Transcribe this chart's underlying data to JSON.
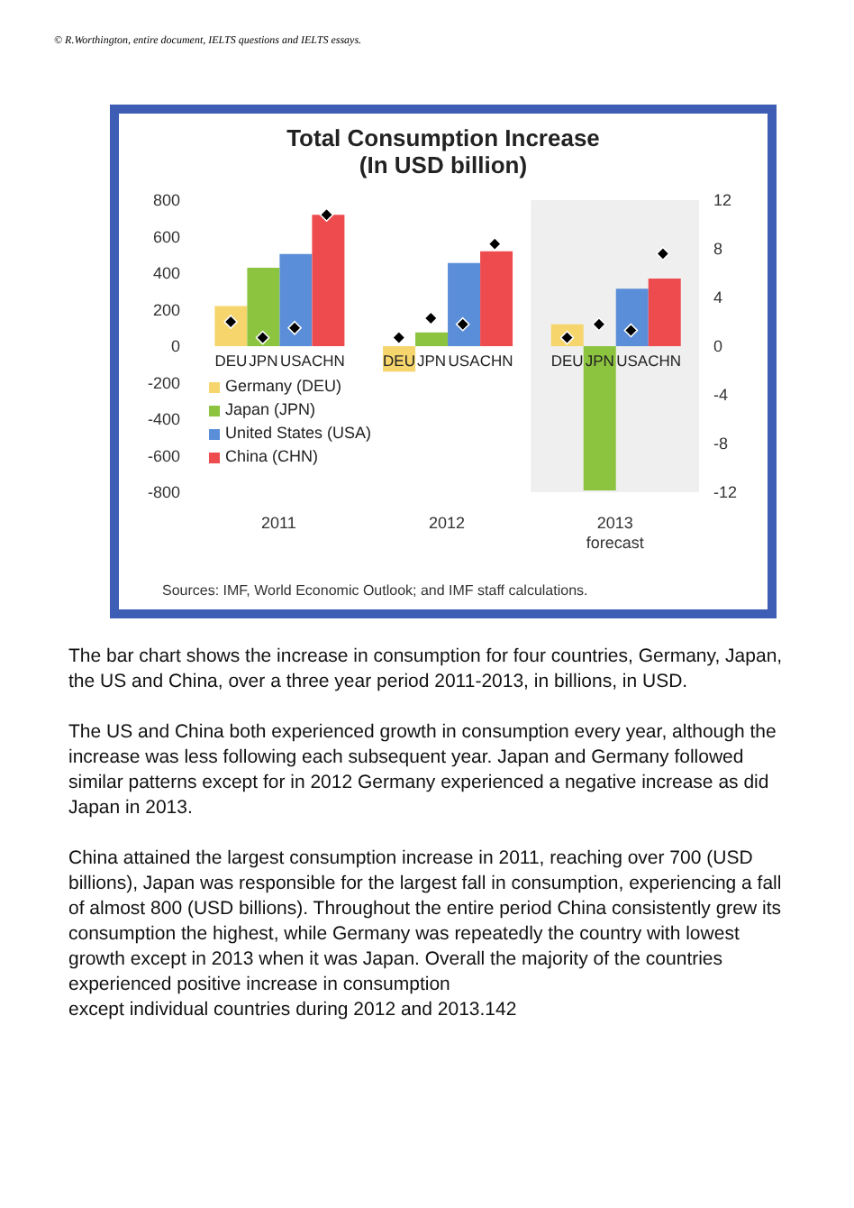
{
  "chart_data": {
    "type": "bar",
    "title": "Total Consumption Increase",
    "subtitle": "(In USD billion)",
    "categories": [
      "2011",
      "2012",
      "2013\nforecast"
    ],
    "series": [
      {
        "name": "Germany (DEU)",
        "color": "#f5d56c",
        "values": [
          220,
          -140,
          120
        ]
      },
      {
        "name": "Japan (JPN)",
        "color": "#8cc43f",
        "values": [
          430,
          75,
          -790
        ]
      },
      {
        "name": "United States (USA)",
        "color": "#5b8ed8",
        "values": [
          505,
          455,
          315
        ]
      },
      {
        "name": "China (CHN)",
        "color": "#ee4b4e",
        "values": [
          720,
          520,
          370
        ]
      },
      {
        "type": "scatter",
        "axis": "y2",
        "color": "#000000",
        "marker": "diamond",
        "values": [
          2,
          0.7,
          0.7
        ]
      },
      {
        "type": "scatter",
        "axis": "y2",
        "color": "#000000",
        "marker": "diamond",
        "values": [
          0.7,
          2.3,
          1.8
        ]
      },
      {
        "type": "scatter",
        "axis": "y2",
        "color": "#000000",
        "marker": "diamond",
        "values": [
          1.5,
          1.8,
          1.3
        ]
      },
      {
        "type": "scatter",
        "axis": "y2",
        "color": "#000000",
        "marker": "diamond",
        "values": [
          10.8,
          8.4,
          7.6
        ]
      }
    ],
    "ylim": [
      -800,
      800
    ],
    "yticks": [
      800,
      600,
      400,
      200,
      0,
      -200,
      -400,
      -600,
      -800
    ],
    "y2lim": [
      -12,
      12
    ],
    "y2ticks": [
      12,
      8,
      4,
      0,
      -4,
      -8,
      -12
    ],
    "bands": [
      {
        "axis": "x",
        "from": "2013\nforecast",
        "to": "2013\nforecast",
        "color": "#efefef"
      }
    ],
    "legend": "bottom left",
    "annotations": [
      "© R.Worthington, entire document, IELTS questions and IELTS essays.",
      "Sources: IMF, World Economic Outlook; and IMF staff calculations.",
      " The bar chart shows the increase in consumption for four countries, Germany, Japan, the US and China, over a three year period 2011-2013, in billions, in USD.",
      "The US and China both experienced  growth in consumption every year, although the increase was less following each subsequent year. Japan and Germany followed similar patterns except for in 2012 Germany experienced  a negative increase as did Japan in 2013.",
      "China attained the largest consumption increase in 2011, reaching over 700 (USD billions), Japan was responsible for the largest fall in consumption, experiencing  a fall of almost 800 (USD billions). Throughout the entire period China consistently grew its consumption the highest, while Germany was repeatedly the country with lowest growth except in 2013 when it was Japan. Overall the majority of the countries experienced   positive increase in consumption\nexcept individual countries during 2012 and 2013.142",
      {
        "text": "DEU",
        "x": "2011",
        "y": 0
      },
      {
        "text": "JPN",
        "x": "2011",
        "y": 0
      },
      {
        "text": "USA",
        "x": "2011",
        "y": 0
      },
      {
        "text": "CHN",
        "x": "2011",
        "y": 0
      },
      {
        "text": "DEU",
        "x": "2012",
        "y": 0
      },
      {
        "text": "JPN",
        "x": "2012",
        "y": 0
      },
      {
        "text": "USA",
        "x": "2012",
        "y": 0
      },
      {
        "text": "CHN",
        "x": "2012",
        "y": 0
      },
      {
        "text": "DEU",
        "x": "2013\nforecast",
        "y": 0
      },
      {
        "text": "JPN",
        "x": "2013\nforecast",
        "y": 0
      },
      {
        "text": "USA",
        "x": "2013\nforecast",
        "y": 0
      },
      {
        "text": "CHN",
        "x": "2013\nforecast",
        "y": 0
      }
    ]
  }
}
